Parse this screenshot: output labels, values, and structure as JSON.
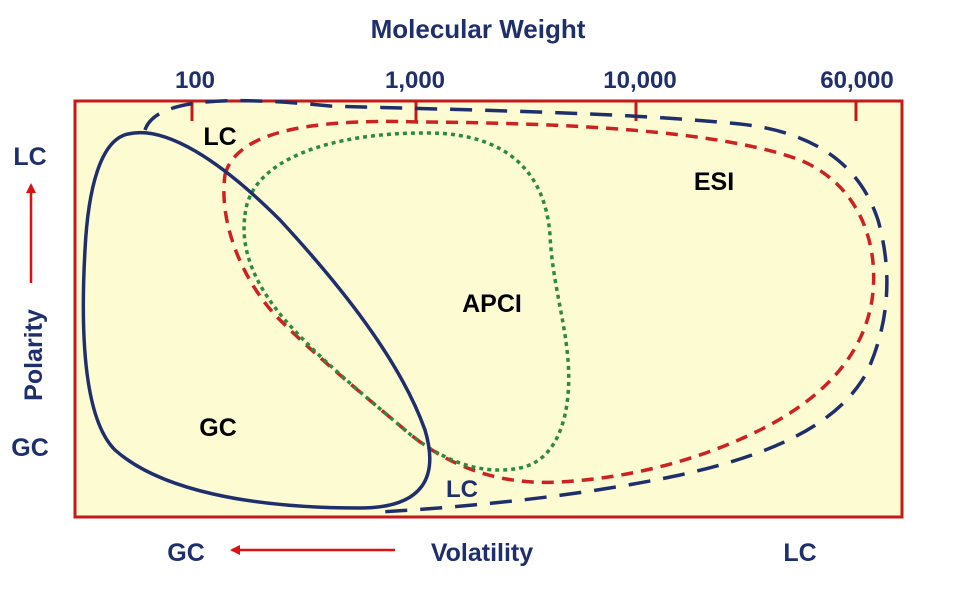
{
  "title": "Molecular Weight",
  "mw_ticks": [
    "100",
    "1,000",
    "10,000",
    "60,000"
  ],
  "y_axis": {
    "label": "Polarity",
    "top": "LC",
    "bottom": "GC"
  },
  "x_axis": {
    "label": "Volatility",
    "left": "GC",
    "right": "LC"
  },
  "regions": {
    "lc_top": "LC",
    "lc_bottom": "LC",
    "gc": "GC",
    "apci": "APCI",
    "esi": "ESI"
  },
  "colors": {
    "panel_fill": "#fdfbd2",
    "frame": "#c31a1a",
    "navy": "#1f2f6b",
    "esi": "#cc2222",
    "apci": "#2e8b3e",
    "arrow": "#dd1111"
  }
}
